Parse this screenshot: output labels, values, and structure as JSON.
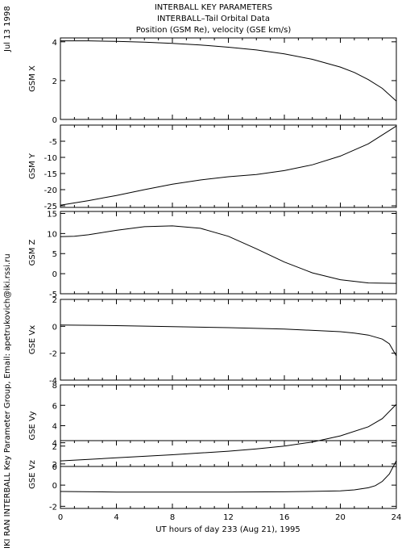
{
  "header": {
    "line1": "INTERBALL KEY PARAMETERS",
    "line2": "INTERBALL–Tail Orbital Data",
    "line3": "Position (GSM Re), velocity (GSE km/s)"
  },
  "side": {
    "date": "Jul 13 1998",
    "credit": "IKI RAN INTERBALL Key Parameter Group, Email: apetrukovich@iki.rssi.ru"
  },
  "xaxis": {
    "label": "UT hours of day 233 (Aug 21), 1995",
    "range": [
      0,
      24
    ],
    "ticks": [
      0,
      4,
      8,
      12,
      16,
      20,
      24
    ],
    "tick_labels": [
      "0",
      "4",
      "8",
      "12",
      "16",
      "20",
      "24"
    ]
  },
  "chart_data": [
    {
      "type": "line",
      "ylabel": "GSM X",
      "ylim": [
        0,
        4.2
      ],
      "yticks": [
        0,
        2,
        4
      ],
      "ytick_labels": [
        "0",
        "2",
        "4"
      ],
      "x": [
        0,
        2,
        4,
        6,
        8,
        10,
        12,
        14,
        16,
        18,
        20,
        21,
        22,
        23,
        24
      ],
      "y": [
        4.05,
        4.05,
        4.02,
        3.98,
        3.92,
        3.84,
        3.72,
        3.58,
        3.38,
        3.1,
        2.7,
        2.42,
        2.05,
        1.6,
        0.95
      ]
    },
    {
      "type": "line",
      "ylabel": "GSM Y",
      "ylim": [
        -25.5,
        0
      ],
      "yticks": [
        -25,
        -20,
        -15,
        -10,
        -5
      ],
      "ytick_labels": [
        "-25",
        "-20",
        "-15",
        "-10",
        "-5"
      ],
      "x": [
        0,
        2,
        4,
        6,
        8,
        10,
        12,
        14,
        16,
        18,
        20,
        22,
        24
      ],
      "y": [
        -24.8,
        -23.4,
        -21.8,
        -20.0,
        -18.3,
        -17.0,
        -16.0,
        -15.3,
        -14.1,
        -12.3,
        -9.6,
        -5.8,
        -0.3
      ]
    },
    {
      "type": "line",
      "ylabel": "GSM Z",
      "ylim": [
        -5,
        15.5
      ],
      "yticks": [
        -5,
        0,
        5,
        10,
        15
      ],
      "ytick_labels": [
        "-5",
        "0",
        "5",
        "10",
        "15"
      ],
      "x": [
        0,
        1,
        2,
        4,
        6,
        8,
        10,
        12,
        14,
        16,
        18,
        20,
        22,
        24
      ],
      "y": [
        9.2,
        9.3,
        9.7,
        10.8,
        11.7,
        11.9,
        11.3,
        9.3,
        6.2,
        2.9,
        0.2,
        -1.5,
        -2.3,
        -2.4
      ]
    },
    {
      "type": "line",
      "ylabel": "GSE Vx",
      "ylim": [
        -4,
        2
      ],
      "yticks": [
        -4,
        -2,
        0,
        2
      ],
      "ytick_labels": [
        "-4",
        "-2",
        "0",
        "2"
      ],
      "x": [
        0,
        4,
        8,
        12,
        16,
        20,
        21,
        22,
        23,
        23.5,
        24
      ],
      "y": [
        0.1,
        0.05,
        -0.02,
        -0.1,
        -0.2,
        -0.4,
        -0.5,
        -0.65,
        -0.95,
        -1.3,
        -2.2
      ]
    },
    {
      "type": "line",
      "ylabel": "GSE Vy",
      "ylim": [
        0,
        8
      ],
      "yticks": [
        0,
        2,
        4,
        6,
        8
      ],
      "ytick_labels": [
        "0",
        "2",
        "4",
        "6",
        "8"
      ],
      "x": [
        0,
        2,
        4,
        6,
        8,
        10,
        12,
        14,
        16,
        18,
        20,
        22,
        23,
        24
      ],
      "y": [
        0.55,
        0.7,
        0.85,
        1.0,
        1.15,
        1.32,
        1.5,
        1.72,
        2.0,
        2.4,
        3.0,
        3.9,
        4.7,
        6.1
      ]
    },
    {
      "type": "line",
      "ylabel": "GSE Vz",
      "ylim": [
        -2.2,
        4.2
      ],
      "yticks": [
        -2,
        0,
        2,
        4
      ],
      "ytick_labels": [
        "-2",
        "0",
        "2",
        "4"
      ],
      "x": [
        0,
        4,
        8,
        12,
        16,
        20,
        21,
        22,
        22.5,
        23,
        23.5,
        24
      ],
      "y": [
        -0.6,
        -0.65,
        -0.65,
        -0.65,
        -0.63,
        -0.55,
        -0.45,
        -0.25,
        -0.05,
        0.35,
        1.05,
        2.3
      ]
    }
  ]
}
